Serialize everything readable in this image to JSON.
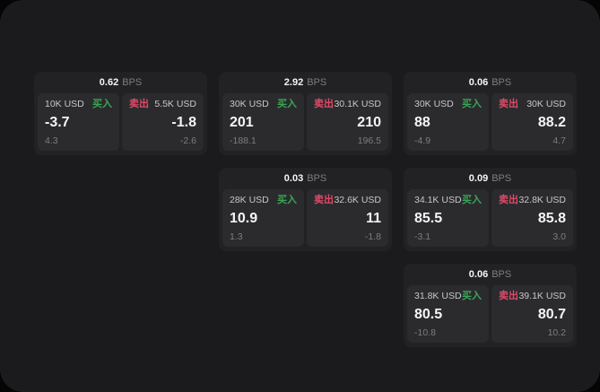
{
  "labels": {
    "buy": "买入",
    "sell": "卖出",
    "bps": "BPS"
  },
  "colors": {
    "background": "#050506",
    "panel": "#1b1b1d",
    "card": "#222225",
    "tile": "#2b2b2e",
    "buy_green": "#3aa655",
    "sell_red": "#de4a68",
    "value_white": "#f5f5f5",
    "muted_gray": "#7d7d82",
    "size_gray": "#c7c7cb"
  },
  "cards": [
    {
      "row": 1,
      "col": 1,
      "bps": "0.62",
      "buy": {
        "size": "10K USD",
        "value": "-3.7",
        "change": "4.3"
      },
      "sell": {
        "size": "5.5K USD",
        "value": "-1.8",
        "change": "-2.6"
      }
    },
    {
      "row": 1,
      "col": 2,
      "bps": "2.92",
      "buy": {
        "size": "30K USD",
        "value": "201",
        "change": "-188.1"
      },
      "sell": {
        "size": "30.1K USD",
        "value": "210",
        "change": "196.5"
      }
    },
    {
      "row": 1,
      "col": 3,
      "bps": "0.06",
      "buy": {
        "size": "30K USD",
        "value": "88",
        "change": "-4.9"
      },
      "sell": {
        "size": "30K USD",
        "value": "88.2",
        "change": "4.7"
      }
    },
    {
      "row": 2,
      "col": 2,
      "bps": "0.03",
      "buy": {
        "size": "28K USD",
        "value": "10.9",
        "change": "1.3"
      },
      "sell": {
        "size": "32.6K USD",
        "value": "11",
        "change": "-1.8"
      }
    },
    {
      "row": 2,
      "col": 3,
      "bps": "0.09",
      "buy": {
        "size": "34.1K USD",
        "value": "85.5",
        "change": "-3.1"
      },
      "sell": {
        "size": "32.8K USD",
        "value": "85.8",
        "change": "3.0"
      }
    },
    {
      "row": 3,
      "col": 3,
      "bps": "0.06",
      "buy": {
        "size": "31.8K USD",
        "value": "80.5",
        "change": "-10.8"
      },
      "sell": {
        "size": "39.1K USD",
        "value": "80.7",
        "change": "10.2"
      }
    }
  ]
}
